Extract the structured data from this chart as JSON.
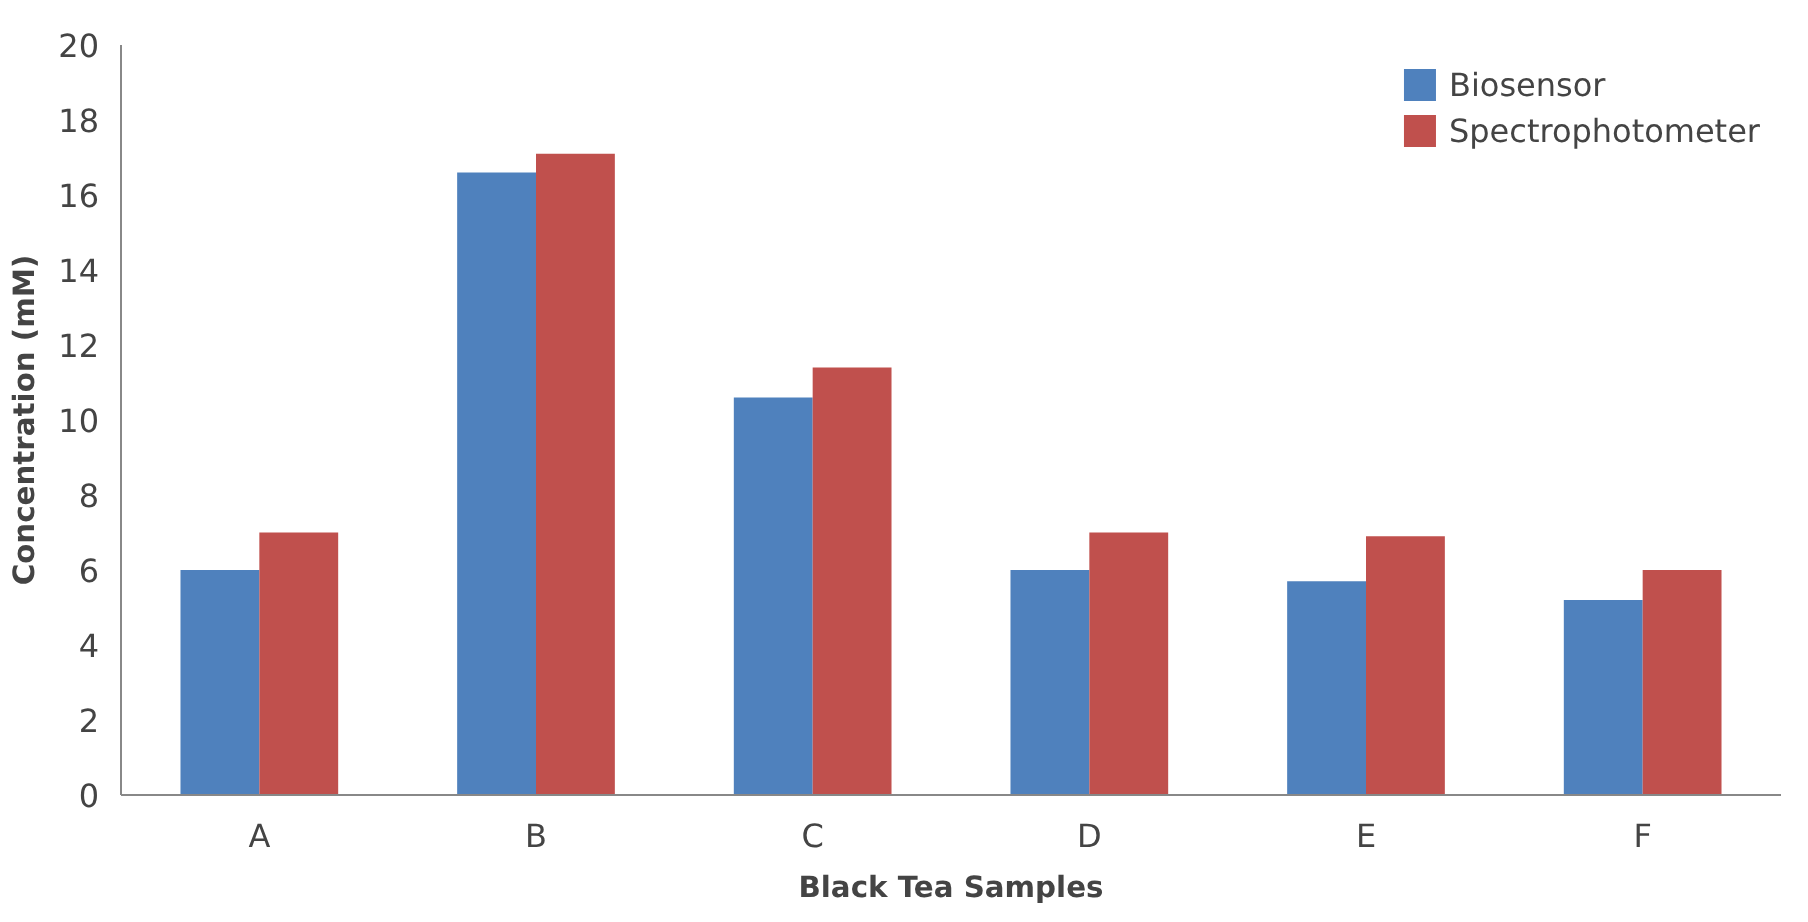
{
  "chart_data": {
    "type": "bar",
    "xlabel": "Black Tea Samples",
    "ylabel": "Concentration (mM)",
    "categories": [
      "A",
      "B",
      "C",
      "D",
      "E",
      "F"
    ],
    "series": [
      {
        "name": "Biosensor",
        "color": "#4f81bd",
        "values": [
          6.0,
          16.6,
          10.6,
          6.0,
          5.7,
          5.2
        ]
      },
      {
        "name": "Spectrophotometer",
        "color": "#c0504d",
        "values": [
          7.0,
          17.1,
          11.4,
          7.0,
          6.9,
          6.0
        ]
      }
    ],
    "ylim": [
      0,
      20
    ],
    "yticks": [
      0,
      2,
      4,
      6,
      8,
      10,
      12,
      14,
      16,
      18,
      20
    ],
    "grid": false,
    "legend": "top right"
  }
}
